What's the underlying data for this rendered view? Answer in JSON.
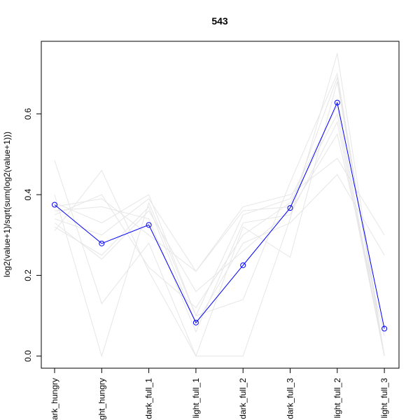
{
  "chart_data": {
    "type": "line",
    "title": "543",
    "xlabel": "",
    "ylabel": "log2(value+1)/sqrt(sum(log2(value+1)))",
    "categories": [
      "dark_hungry",
      "light_hungry",
      "dark_full_1",
      "light_full_1",
      "dark_full_2",
      "dark_full_3",
      "light_full_2",
      "light_full_3"
    ],
    "ylim": [
      -0.03,
      0.78
    ],
    "yticks": [
      0.0,
      0.2,
      0.4,
      0.6
    ],
    "ytick_labels": [
      "0.0",
      "0.2",
      "0.4",
      "0.6"
    ],
    "grid": false,
    "legend": "none",
    "highlight_series": {
      "values": [
        0.375,
        0.279,
        0.325,
        0.083,
        0.225,
        0.367,
        0.628,
        0.068
      ],
      "color": "#0000ff",
      "marker": "open-circle"
    },
    "background_series": {
      "color": "#e6e6e6",
      "lines": [
        [
          0.485,
          0.13,
          0.28,
          0.0,
          0.0,
          0.34,
          0.75,
          0.0
        ],
        [
          0.4,
          0.0,
          0.38,
          0.1,
          0.14,
          0.43,
          0.7,
          0.0
        ],
        [
          0.31,
          0.46,
          0.21,
          0.0,
          0.32,
          0.245,
          0.68,
          0.0
        ],
        [
          0.35,
          0.4,
          0.22,
          0.12,
          0.3,
          0.38,
          0.6,
          0.0
        ],
        [
          0.34,
          0.3,
          0.39,
          0.21,
          0.36,
          0.37,
          0.69,
          0.0
        ],
        [
          0.33,
          0.24,
          0.36,
          0.16,
          0.26,
          0.36,
          0.55,
          0.05
        ],
        [
          0.38,
          0.33,
          0.4,
          0.1,
          0.35,
          0.39,
          0.62,
          0.0
        ],
        [
          0.36,
          0.37,
          0.34,
          0.06,
          0.33,
          0.35,
          0.58,
          0.0
        ],
        [
          0.37,
          0.39,
          0.3,
          0.21,
          0.37,
          0.4,
          0.49,
          0.3
        ],
        [
          0.32,
          0.25,
          0.37,
          0.08,
          0.28,
          0.33,
          0.45,
          0.25
        ]
      ]
    }
  }
}
